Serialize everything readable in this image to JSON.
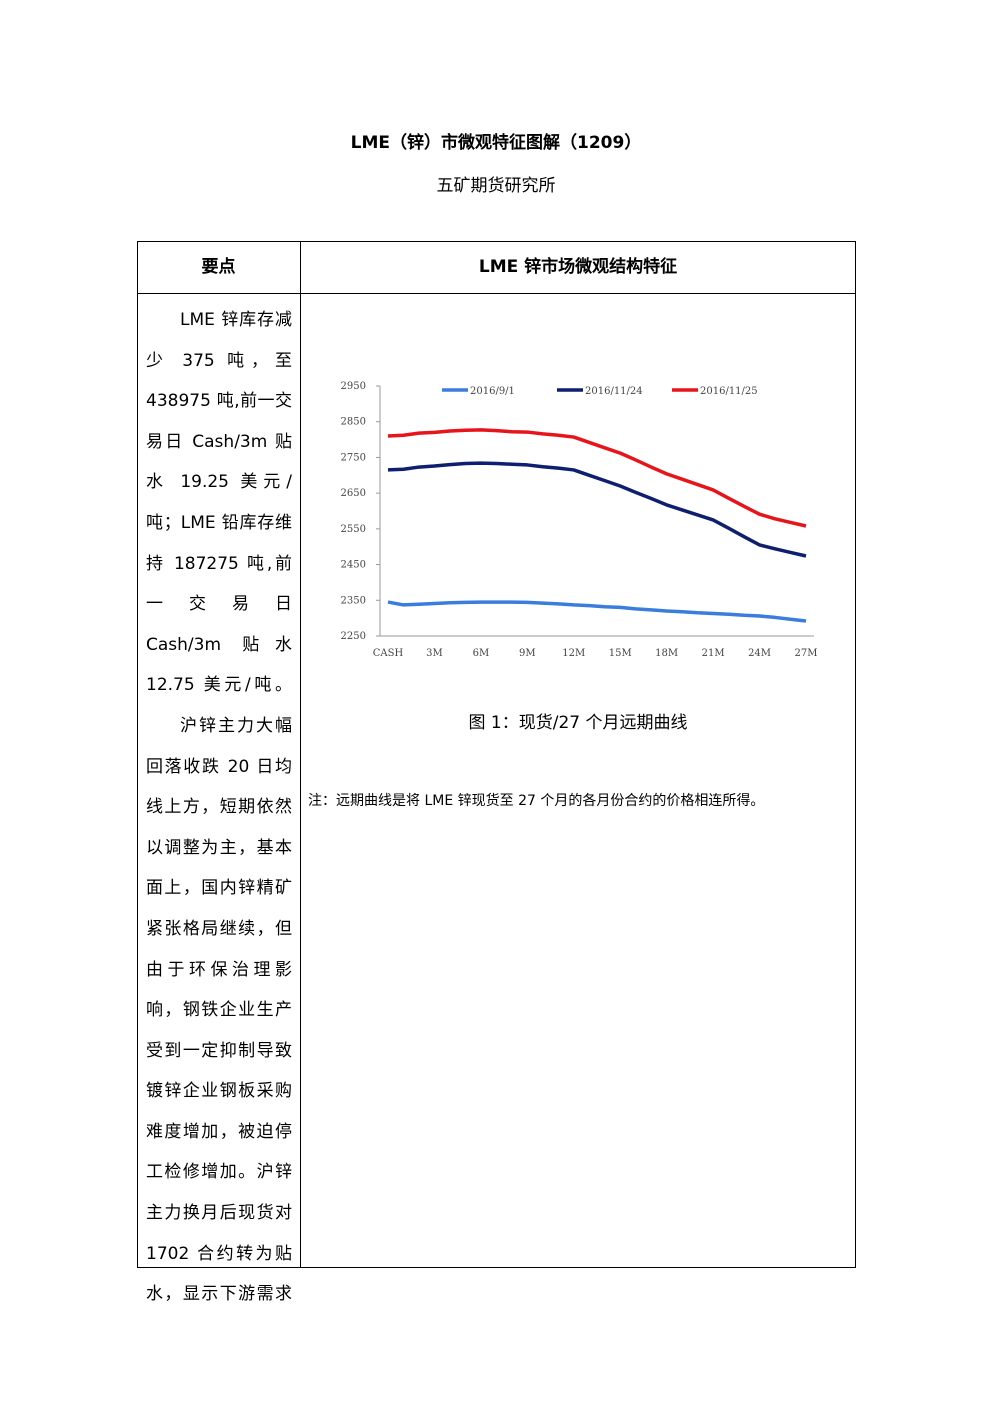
{
  "header": {
    "title": "LME（锌）市微观特征图解（1209）",
    "subtitle": "五矿期货研究所"
  },
  "table": {
    "headers": [
      "要点",
      "LME 锌市场微观结构特征"
    ],
    "left_paragraphs": [
      "LME 锌库存减少 375 吨，至 438975 吨,前一交易日 Cash/3m 贴水 19.25 美元/吨；LME 铅库存维持 187275 吨,前一交易日 Cash/3m 贴水 12.75 美元/吨。",
      "沪锌主力大幅回落收跌 20 日均线上方，短期依然以调整为主，基本面上，国内锌精矿紧张格局继续，但由于环保治理影响，钢铁企业生产受到一定抑制导致镀锌企业钢板采购难度增加，被迫停工检修增加。沪锌主力换月后现货对 1702 合约转为贴水，显示下游需求"
    ],
    "caption": "图 1：现货/27 个月远期曲线",
    "note": "注：远期曲线是将 LME 锌现货至 27 个月的各月份合约的价格相连所得。"
  },
  "chart_data": {
    "type": "line",
    "categories": [
      "CASH",
      null,
      null,
      "3M",
      null,
      null,
      "6M",
      null,
      null,
      "9M",
      null,
      null,
      "12M",
      null,
      null,
      "15M",
      null,
      null,
      "18M",
      null,
      null,
      "21M",
      null,
      null,
      "24M",
      null,
      null,
      "27M"
    ],
    "series": [
      {
        "name": "2016/9/1",
        "color": "#3b7ddd",
        "values": [
          2345,
          2337,
          2339,
          2341,
          2343,
          2344,
          2345,
          2345,
          2345,
          2344,
          2342,
          2340,
          2337,
          2335,
          2332,
          2330,
          2326,
          2323,
          2320,
          2318,
          2315,
          2313,
          2311,
          2308,
          2306,
          2302,
          2297,
          2292
        ]
      },
      {
        "name": "2016/11/24",
        "color": "#0d1f6e",
        "values": [
          2715,
          2717,
          2723,
          2726,
          2730,
          2733,
          2734,
          2733,
          2731,
          2729,
          2724,
          2720,
          2715,
          2700,
          2685,
          2670,
          2652,
          2635,
          2617,
          2603,
          2589,
          2575,
          2552,
          2528,
          2505,
          2494,
          2484,
          2474
        ]
      },
      {
        "name": "2016/11/25",
        "color": "#e8141b",
        "values": [
          2810,
          2812,
          2818,
          2820,
          2824,
          2826,
          2827,
          2825,
          2822,
          2821,
          2816,
          2812,
          2807,
          2792,
          2777,
          2762,
          2743,
          2723,
          2704,
          2689,
          2674,
          2659,
          2636,
          2613,
          2591,
          2578,
          2568,
          2558
        ]
      }
    ],
    "ylim": [
      2250,
      2950
    ],
    "yticks": [
      2250,
      2350,
      2450,
      2550,
      2650,
      2750,
      2850,
      2950
    ],
    "legend": "top"
  }
}
